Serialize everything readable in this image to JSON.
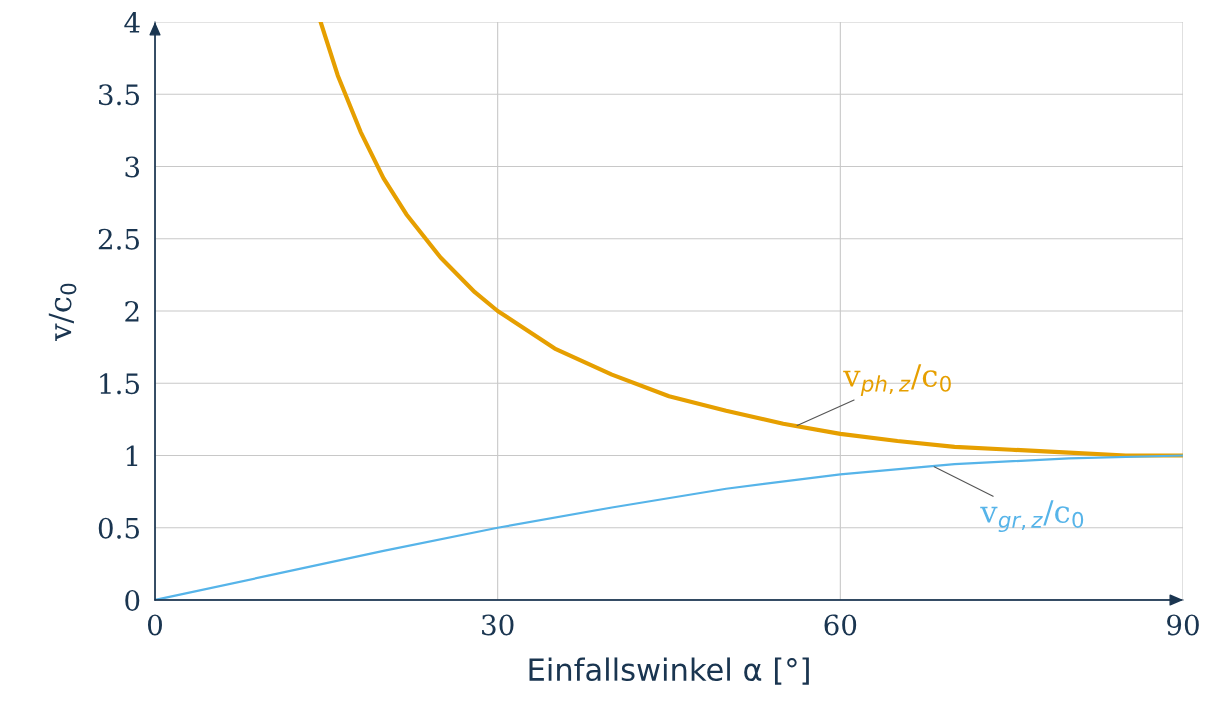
{
  "chart_data": {
    "type": "line",
    "xlabel": "Einfallswinkel α [°]",
    "ylabel": "v/c$_{0}$",
    "xlim": [
      0,
      90
    ],
    "ylim": [
      0,
      4
    ],
    "xticks": [
      0,
      30,
      60,
      90
    ],
    "yticks": [
      0,
      0.5,
      1,
      1.5,
      2,
      2.5,
      3,
      3.5,
      4
    ],
    "grid": true,
    "legend": false,
    "marker": "none",
    "line_style": "solid",
    "series": [
      {
        "color": "#e69f00",
        "x": [
          14.5,
          16,
          18,
          20,
          22,
          25,
          28,
          30,
          35,
          40,
          45,
          50,
          55,
          60,
          65,
          70,
          75,
          80,
          85,
          90
        ],
        "values": [
          4.0,
          3.63,
          3.24,
          2.92,
          2.67,
          2.37,
          2.13,
          2.0,
          1.74,
          1.56,
          1.41,
          1.31,
          1.22,
          1.15,
          1.1,
          1.06,
          1.04,
          1.02,
          1.0,
          1.0
        ]
      },
      {
        "color": "#56b4e9",
        "x": [
          0,
          10,
          20,
          30,
          40,
          50,
          60,
          70,
          80,
          90
        ],
        "values": [
          0,
          0.17,
          0.34,
          0.5,
          0.64,
          0.77,
          0.87,
          0.94,
          0.98,
          1.0
        ]
      }
    ],
    "annotations": [
      {
        "text": "v$_{ph,z}$/c$_{0}$",
        "x": 56,
        "y": 1.2
      },
      {
        "text": "v$_{gr,z}$/c$_{0}$",
        "x": 68,
        "y": 0.93
      }
    ]
  }
}
